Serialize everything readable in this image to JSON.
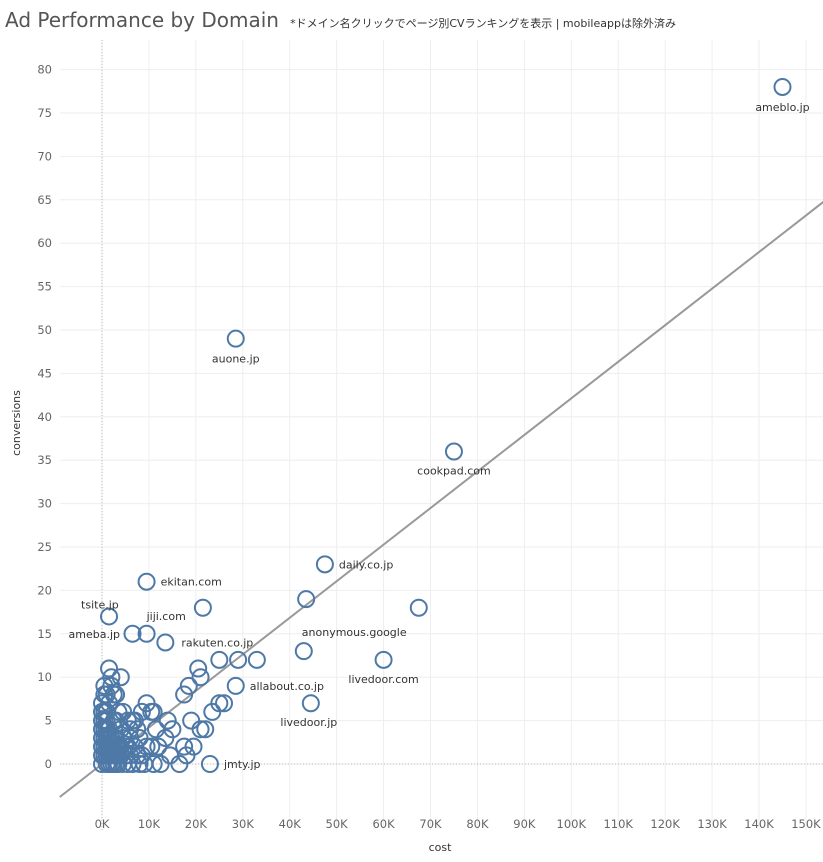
{
  "header": {
    "title": "Ad Performance by Domain",
    "subtitle": "*ドメイン名クリックでページ別CVランキングを表示 | mobileappは除外済み"
  },
  "chart_data": {
    "type": "scatter",
    "title": "Ad Performance by Domain",
    "xlabel": "cost",
    "ylabel": "conversions",
    "xlim": [
      -9000,
      155000
    ],
    "ylim": [
      -4,
      82
    ],
    "x_ticks": [
      0,
      10000,
      20000,
      30000,
      40000,
      50000,
      60000,
      70000,
      80000,
      90000,
      100000,
      110000,
      120000,
      130000,
      140000,
      150000
    ],
    "x_tick_labels": [
      "0K",
      "10K",
      "20K",
      "30K",
      "40K",
      "50K",
      "60K",
      "70K",
      "80K",
      "90K",
      "100K",
      "110K",
      "120K",
      "130K",
      "140K",
      "150K"
    ],
    "y_ticks": [
      0,
      5,
      10,
      15,
      20,
      25,
      30,
      35,
      40,
      45,
      50,
      55,
      60,
      65,
      70,
      75,
      80
    ],
    "y_tick_labels": [
      "0",
      "5",
      "10",
      "15",
      "20",
      "25",
      "30",
      "35",
      "40",
      "45",
      "50",
      "55",
      "60",
      "65",
      "70",
      "75",
      "80"
    ],
    "trend_line": {
      "x": [
        -9000,
        155000
      ],
      "y": [
        -3.8,
        65.3
      ]
    },
    "grid": true,
    "colors": {
      "marker": "#4e79a7",
      "trend": "#999999",
      "grid": "#eeeeee"
    },
    "labeled_points": [
      {
        "label": "ameblo.jp",
        "x": 145000,
        "y": 78
      },
      {
        "label": "auone.jp",
        "x": 28500,
        "y": 49
      },
      {
        "label": "cookpad.com",
        "x": 75000,
        "y": 36
      },
      {
        "label": "daily.co.jp",
        "x": 47500,
        "y": 23
      },
      {
        "label": "ekitan.com",
        "x": 9500,
        "y": 21
      },
      {
        "label": "tsite.jp",
        "x": 1500,
        "y": 17
      },
      {
        "label": "jiji.com",
        "x": 9500,
        "y": 15
      },
      {
        "label": "ameba.jp",
        "x": 6500,
        "y": 15
      },
      {
        "label": "rakuten.co.jp",
        "x": 13500,
        "y": 14
      },
      {
        "label": "anonymous.google",
        "x": 43000,
        "y": 13
      },
      {
        "label": "livedoor.com",
        "x": 60000,
        "y": 12
      },
      {
        "label": "allabout.co.jp",
        "x": 28500,
        "y": 9
      },
      {
        "label": "livedoor.jp",
        "x": 44500,
        "y": 7
      },
      {
        "label": "jmty.jp",
        "x": 23000,
        "y": 0
      }
    ],
    "points": [
      [
        21500,
        18
      ],
      [
        43500,
        19
      ],
      [
        67500,
        18
      ],
      [
        29000,
        12
      ],
      [
        33000,
        12
      ],
      [
        25000,
        12
      ],
      [
        20500,
        11
      ],
      [
        21000,
        10
      ],
      [
        18500,
        9
      ],
      [
        17500,
        8
      ],
      [
        25000,
        7
      ],
      [
        26000,
        7
      ],
      [
        23500,
        6
      ],
      [
        22000,
        4
      ],
      [
        21000,
        4
      ],
      [
        19000,
        5
      ],
      [
        19500,
        2
      ],
      [
        17500,
        2
      ],
      [
        18000,
        1
      ],
      [
        16500,
        0
      ],
      [
        14500,
        1
      ],
      [
        12500,
        0
      ],
      [
        13500,
        3
      ],
      [
        15000,
        4
      ],
      [
        14000,
        5
      ],
      [
        12000,
        2
      ],
      [
        11500,
        4
      ],
      [
        11000,
        6
      ],
      [
        9500,
        7
      ],
      [
        10500,
        6
      ],
      [
        8500,
        6
      ],
      [
        8000,
        3
      ],
      [
        7000,
        5
      ],
      [
        6500,
        5
      ],
      [
        6000,
        4
      ],
      [
        5500,
        2
      ],
      [
        5000,
        1
      ],
      [
        4500,
        3
      ],
      [
        4000,
        4
      ],
      [
        3500,
        6
      ],
      [
        3000,
        8
      ],
      [
        2500,
        8
      ],
      [
        2000,
        10
      ],
      [
        1500,
        11
      ],
      [
        4000,
        10
      ],
      [
        2000,
        9
      ],
      [
        500,
        9
      ],
      [
        1000,
        8
      ],
      [
        500,
        8
      ],
      [
        0,
        7
      ],
      [
        500,
        6
      ],
      [
        1000,
        5
      ],
      [
        1500,
        4
      ],
      [
        2000,
        3
      ],
      [
        2500,
        2
      ],
      [
        3000,
        1
      ],
      [
        3500,
        0
      ],
      [
        4500,
        0
      ],
      [
        5500,
        0
      ],
      [
        6500,
        0
      ],
      [
        7500,
        1
      ],
      [
        8500,
        1
      ],
      [
        9500,
        2
      ],
      [
        10500,
        2
      ],
      [
        0,
        0
      ],
      [
        0,
        1
      ],
      [
        0,
        2
      ],
      [
        0,
        3
      ],
      [
        0,
        4
      ],
      [
        0,
        5
      ],
      [
        0,
        6
      ],
      [
        500,
        1
      ],
      [
        500,
        2
      ],
      [
        500,
        3
      ],
      [
        500,
        4
      ],
      [
        500,
        5
      ],
      [
        1000,
        0
      ],
      [
        1000,
        1
      ],
      [
        1000,
        2
      ],
      [
        1000,
        3
      ],
      [
        1000,
        4
      ],
      [
        1500,
        0
      ],
      [
        1500,
        1
      ],
      [
        1500,
        2
      ],
      [
        1500,
        3
      ],
      [
        2000,
        0
      ],
      [
        2000,
        1
      ],
      [
        2000,
        2
      ],
      [
        2500,
        0
      ],
      [
        2500,
        1
      ],
      [
        2500,
        3
      ],
      [
        3000,
        0
      ],
      [
        3000,
        2
      ],
      [
        3000,
        3
      ],
      [
        3500,
        1
      ],
      [
        3500,
        2
      ],
      [
        4000,
        1
      ],
      [
        4000,
        2
      ],
      [
        5000,
        2
      ],
      [
        6000,
        1
      ],
      [
        7000,
        2
      ],
      [
        8000,
        0
      ],
      [
        9000,
        0
      ],
      [
        11000,
        0
      ],
      [
        6000,
        3
      ],
      [
        7500,
        4
      ],
      [
        5500,
        5
      ],
      [
        3000,
        5
      ],
      [
        2500,
        5
      ],
      [
        4500,
        6
      ],
      [
        1500,
        7
      ],
      [
        1000,
        6
      ]
    ]
  }
}
